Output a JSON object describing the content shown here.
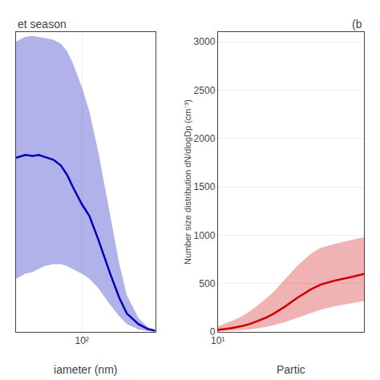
{
  "chart_data": [
    {
      "type": "line",
      "title": "et season",
      "xlabel": "iameter (nm)",
      "x": [
        20,
        25,
        30,
        35,
        40,
        50,
        60,
        70,
        80,
        100,
        120,
        150,
        200,
        250,
        300,
        400,
        500,
        600
      ],
      "series": [
        {
          "color": "#0000bb",
          "values": [
            1800,
            1830,
            1820,
            1830,
            1810,
            1780,
            1720,
            1620,
            1500,
            1320,
            1200,
            950,
            600,
            350,
            190,
            80,
            30,
            12
          ],
          "lower": [
            550,
            600,
            620,
            650,
            680,
            700,
            700,
            680,
            650,
            600,
            550,
            450,
            280,
            160,
            80,
            25,
            8,
            3
          ],
          "upper": [
            3000,
            3050,
            3060,
            3050,
            3040,
            3020,
            2980,
            2900,
            2780,
            2530,
            2280,
            1850,
            1200,
            700,
            380,
            140,
            50,
            18
          ]
        }
      ],
      "log": "x",
      "grid": true,
      "xlim": [
        20,
        600
      ],
      "xticks": [
        {
          "value": 100,
          "label": "10²"
        }
      ],
      "ylim": [
        0,
        3100
      ],
      "yticks": [],
      "tick_labels": "x"
    },
    {
      "type": "line",
      "title": "(b",
      "xlabel": "Partic",
      "ylabel": "Number size distribution dN/dlogDp (cm⁻³)",
      "x": [
        10,
        12,
        15,
        20,
        25,
        30,
        40,
        50,
        70,
        100,
        150,
        200,
        300,
        500,
        700
      ],
      "series": [
        {
          "color": "#cc0000",
          "values": [
            20,
            28,
            40,
            60,
            80,
            105,
            145,
            185,
            260,
            350,
            440,
            490,
            530,
            570,
            600
          ],
          "lower": [
            5,
            8,
            12,
            18,
            25,
            35,
            50,
            68,
            100,
            145,
            195,
            230,
            265,
            295,
            320
          ],
          "upper": [
            55,
            80,
            115,
            160,
            210,
            260,
            340,
            410,
            540,
            680,
            810,
            870,
            910,
            950,
            980
          ]
        }
      ],
      "log": "x",
      "grid": true,
      "xlim": [
        10,
        700
      ],
      "xticks": [
        {
          "value": 10,
          "label": "10¹"
        }
      ],
      "ylim": [
        0,
        3100
      ],
      "yticks": [
        0,
        500,
        1000,
        1500,
        2000,
        2500,
        3000
      ]
    }
  ]
}
